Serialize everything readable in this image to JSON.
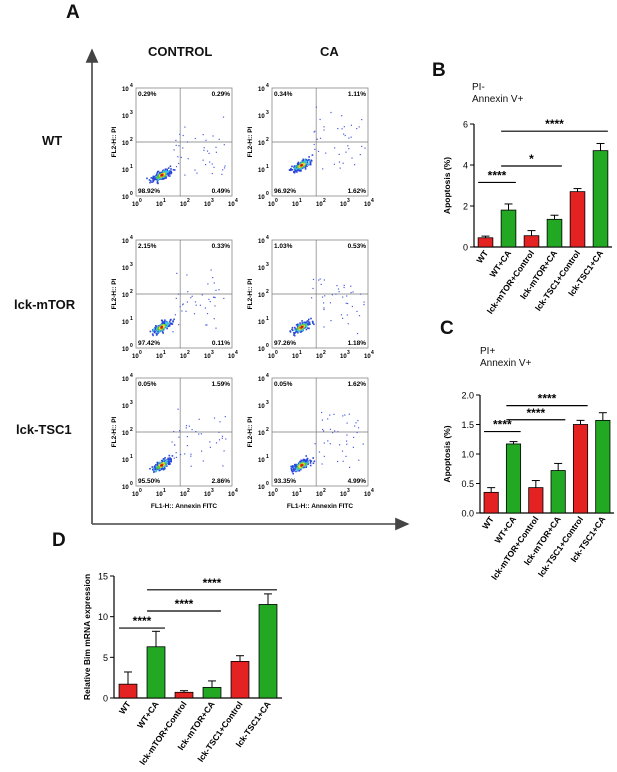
{
  "panel_letters": {
    "A": "A",
    "B": "B",
    "C": "C",
    "D": "D"
  },
  "flow": {
    "column_headers": [
      "CONTROL",
      "CA"
    ],
    "row_headers": [
      "WT",
      "lck-mTOR",
      "lck-TSC1"
    ],
    "y_axis_label": "FL2-H:: PI",
    "x_axis_label": "FL1-H:: Annexin FITC",
    "tick_base": "10",
    "tick_exponents": [
      "0",
      "1",
      "2",
      "3",
      "4"
    ],
    "plots": [
      {
        "row": 0,
        "col": 0,
        "q_ul": "0.29%",
        "q_ur": "0.29%",
        "q_ll": "98.92%",
        "q_lr": "0.49%"
      },
      {
        "row": 0,
        "col": 1,
        "q_ul": "0.34%",
        "q_ur": "1.11%",
        "q_ll": "96.92%",
        "q_lr": "1.62%"
      },
      {
        "row": 1,
        "col": 0,
        "q_ul": "2.15%",
        "q_ur": "0.33%",
        "q_ll": "97.42%",
        "q_lr": "0.11%"
      },
      {
        "row": 1,
        "col": 1,
        "q_ul": "1.03%",
        "q_ur": "0.53%",
        "q_ll": "97.26%",
        "q_lr": "1.18%"
      },
      {
        "row": 2,
        "col": 0,
        "q_ul": "0.05%",
        "q_ur": "1.59%",
        "q_ll": "95.50%",
        "q_lr": "2.86%"
      },
      {
        "row": 2,
        "col": 1,
        "q_ul": "0.05%",
        "q_ur": "1.62%",
        "q_ll": "93.35%",
        "q_lr": "4.99%"
      }
    ]
  },
  "chart_data": [
    {
      "id": "B",
      "type": "bar",
      "title_lines": [
        "PI-",
        "Annexin V+"
      ],
      "ylabel": "Apoptosis (%)",
      "categories": [
        "WT",
        "WT+CA",
        "lck-mTOR+Control",
        "lck-mTOR+CA",
        "lck-TSC1+Control",
        "lck-TSC1+CA"
      ],
      "values": [
        0.45,
        1.8,
        0.55,
        1.35,
        2.7,
        4.7
      ],
      "errors": [
        0.08,
        0.3,
        0.25,
        0.2,
        0.15,
        0.35
      ],
      "colors": [
        "#e52222",
        "#22a822",
        "#e52222",
        "#22a822",
        "#e52222",
        "#22a822"
      ],
      "ylim": [
        0,
        6
      ],
      "yticks": [
        "0",
        "2",
        "4",
        "6"
      ],
      "significance": [
        {
          "from": 0,
          "to": 1,
          "label": "****",
          "y": 3.15
        },
        {
          "from": 1,
          "to": 3,
          "label": "*",
          "y": 3.95
        },
        {
          "from": 1,
          "to": 5,
          "label": "****",
          "y": 5.65
        }
      ]
    },
    {
      "id": "C",
      "type": "bar",
      "title_lines": [
        "PI+",
        "Annexin V+"
      ],
      "ylabel": "Apoptosis (%)",
      "categories": [
        "WT",
        "WT+CA",
        "lck-mTOR+Control",
        "lck-mTOR+CA",
        "lck-TSC1+Control",
        "lck-TSC1+CA"
      ],
      "values": [
        0.35,
        1.17,
        0.43,
        0.72,
        1.5,
        1.57
      ],
      "errors": [
        0.08,
        0.04,
        0.12,
        0.12,
        0.07,
        0.13
      ],
      "colors": [
        "#e52222",
        "#22a822",
        "#e52222",
        "#22a822",
        "#e52222",
        "#22a822"
      ],
      "ylim": [
        0,
        2.0
      ],
      "yticks": [
        "0.0",
        "0.5",
        "1.0",
        "1.5",
        "2.0"
      ],
      "significance": [
        {
          "from": 0,
          "to": 1,
          "label": "****",
          "y": 1.38
        },
        {
          "from": 1,
          "to": 3,
          "label": "****",
          "y": 1.58
        },
        {
          "from": 1,
          "to": 4,
          "label": "****",
          "y": 1.82
        }
      ]
    },
    {
      "id": "D",
      "type": "bar",
      "title_lines": [],
      "ylabel": "Relative Bim mRNA expression",
      "categories": [
        "WT",
        "WT+CA",
        "lck-mTOR+Control",
        "lck-mTOR+CA",
        "lck-TSC1+Control",
        "lck-TSC1+CA"
      ],
      "values": [
        1.7,
        6.3,
        0.7,
        1.3,
        4.5,
        11.5
      ],
      "errors": [
        1.5,
        1.9,
        0.2,
        0.8,
        0.7,
        1.3
      ],
      "colors": [
        "#e52222",
        "#22a822",
        "#e52222",
        "#22a822",
        "#e52222",
        "#22a822"
      ],
      "ylim": [
        0,
        15
      ],
      "yticks": [
        "0",
        "5",
        "10",
        "15"
      ],
      "significance": [
        {
          "from": 0,
          "to": 1,
          "label": "****",
          "y": 8.6
        },
        {
          "from": 1,
          "to": 3,
          "label": "****",
          "y": 10.7
        },
        {
          "from": 1,
          "to": 5,
          "label": "****",
          "y": 13.3
        }
      ]
    }
  ]
}
